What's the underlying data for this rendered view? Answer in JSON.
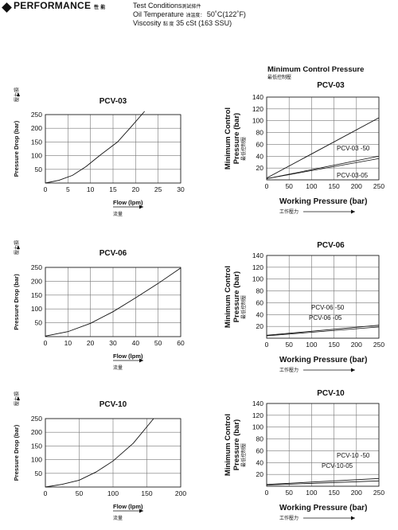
{
  "header": {
    "title": "PERFORMANCE",
    "title_cjk": "性 能",
    "test_conditions": "Test Conditions",
    "test_conditions_cjk": "測試條件",
    "oil_temp_label": "Oil Temperature",
    "oil_temp_cjk": "油溫度：",
    "oil_temp_value": "50˚C(122˚F)",
    "viscosity_label": "Viscosity",
    "viscosity_cjk": "黏 度",
    "viscosity_value": "35 cSt (163 SSU)"
  },
  "section_title": "Minimum Control Pressure",
  "section_title_cjk": "最低控制壓",
  "chart_data": [
    {
      "id": "pressure-drop-pcv03",
      "type": "line",
      "title": "PCV-03",
      "xlabel": "Flow (lpm)",
      "xlabel_cjk": "流量",
      "ylabel": "Pressure Drop (bar)",
      "ylabel_cjk": "壓力損",
      "xlim": [
        0,
        30
      ],
      "ylim": [
        0,
        250
      ],
      "xticks": [
        0,
        5,
        10,
        15,
        20,
        25,
        30
      ],
      "yticks": [
        50,
        100,
        150,
        200,
        250
      ],
      "grid": true,
      "series": [
        {
          "x": [
            0,
            3,
            6,
            9,
            12,
            16,
            19,
            22
          ],
          "y": [
            0,
            10,
            28,
            60,
            100,
            150,
            205,
            262
          ]
        }
      ]
    },
    {
      "id": "min-control-pcv03",
      "type": "line",
      "title": "PCV-03",
      "xlabel": "Working Pressure (bar)",
      "xlabel_cjk": "工作壓力",
      "ylabel": "Minimum Control Pressure (bar)",
      "ylabel_cjk": "最低控制壓",
      "xlim": [
        0,
        250
      ],
      "ylim": [
        0,
        140
      ],
      "xticks": [
        0,
        50,
        100,
        150,
        200,
        250
      ],
      "yticks": [
        20,
        40,
        60,
        80,
        100,
        120,
        140
      ],
      "grid": true,
      "series": [
        {
          "x": [
            0,
            250
          ],
          "y": [
            3,
            105
          ]
        },
        {
          "name": "PCV-03 -50",
          "x": [
            0,
            250
          ],
          "y": [
            2,
            40
          ]
        },
        {
          "name": "PCV-03-05",
          "x": [
            0,
            250
          ],
          "y": [
            2,
            36
          ]
        }
      ]
    },
    {
      "id": "pressure-drop-pcv06",
      "type": "line",
      "title": "PCV-06",
      "xlabel": "Flow (lpm)",
      "xlabel_cjk": "流量",
      "ylabel": "Pressure Drop (bar)",
      "ylabel_cjk": "壓力損",
      "xlim": [
        0,
        60
      ],
      "ylim": [
        0,
        250
      ],
      "xticks": [
        0,
        10,
        20,
        30,
        40,
        50,
        60
      ],
      "yticks": [
        50,
        100,
        150,
        200,
        250
      ],
      "grid": true,
      "series": [
        {
          "x": [
            0,
            10,
            20,
            30,
            40,
            50,
            60
          ],
          "y": [
            2,
            18,
            48,
            90,
            140,
            192,
            248
          ]
        }
      ]
    },
    {
      "id": "min-control-pcv06",
      "type": "line",
      "title": "PCV-06",
      "xlabel": "Working Pressure (bar)",
      "xlabel_cjk": "工作壓力",
      "ylabel": "Minimum Control Pressure (bar)",
      "ylabel_cjk": "最低控制壓",
      "xlim": [
        0,
        250
      ],
      "ylim": [
        0,
        140
      ],
      "xticks": [
        0,
        50,
        100,
        150,
        200,
        250
      ],
      "yticks": [
        20,
        40,
        60,
        80,
        100,
        120,
        140
      ],
      "grid": true,
      "series": [
        {
          "name": "PCV-06 -50",
          "x": [
            0,
            250
          ],
          "y": [
            5,
            22
          ]
        },
        {
          "name": "PCV-06 -05",
          "x": [
            0,
            250
          ],
          "y": [
            4,
            19
          ]
        }
      ]
    },
    {
      "id": "pressure-drop-pcv10",
      "type": "line",
      "title": "PCV-10",
      "xlabel": "Flow (lpm)",
      "xlabel_cjk": "流量",
      "ylabel": "Pressure Drop (bar)",
      "ylabel_cjk": "壓力損",
      "xlim": [
        0,
        200
      ],
      "ylim": [
        0,
        250
      ],
      "xticks": [
        0,
        50,
        100,
        150,
        200
      ],
      "yticks": [
        50,
        100,
        150,
        200,
        250
      ],
      "grid": true,
      "series": [
        {
          "x": [
            0,
            25,
            50,
            75,
            100,
            130,
            160
          ],
          "y": [
            0,
            10,
            25,
            55,
            95,
            160,
            250
          ]
        }
      ]
    },
    {
      "id": "min-control-pcv10",
      "type": "line",
      "title": "PCV-10",
      "xlabel": "Working Pressure (bar)",
      "xlabel_cjk": "工作壓力",
      "ylabel": "Minimum Control Pressure (bar)",
      "ylabel_cjk": "最低控制壓",
      "xlim": [
        0,
        250
      ],
      "ylim": [
        0,
        140
      ],
      "xticks": [
        0,
        50,
        100,
        150,
        200,
        250
      ],
      "yticks": [
        20,
        40,
        60,
        80,
        100,
        120,
        140
      ],
      "grid": true,
      "series": [
        {
          "name": "PCV-10 -50",
          "x": [
            0,
            250
          ],
          "y": [
            3,
            13
          ]
        },
        {
          "name": "PCV-10-05",
          "x": [
            0,
            250
          ],
          "y": [
            2,
            9
          ]
        }
      ]
    }
  ]
}
